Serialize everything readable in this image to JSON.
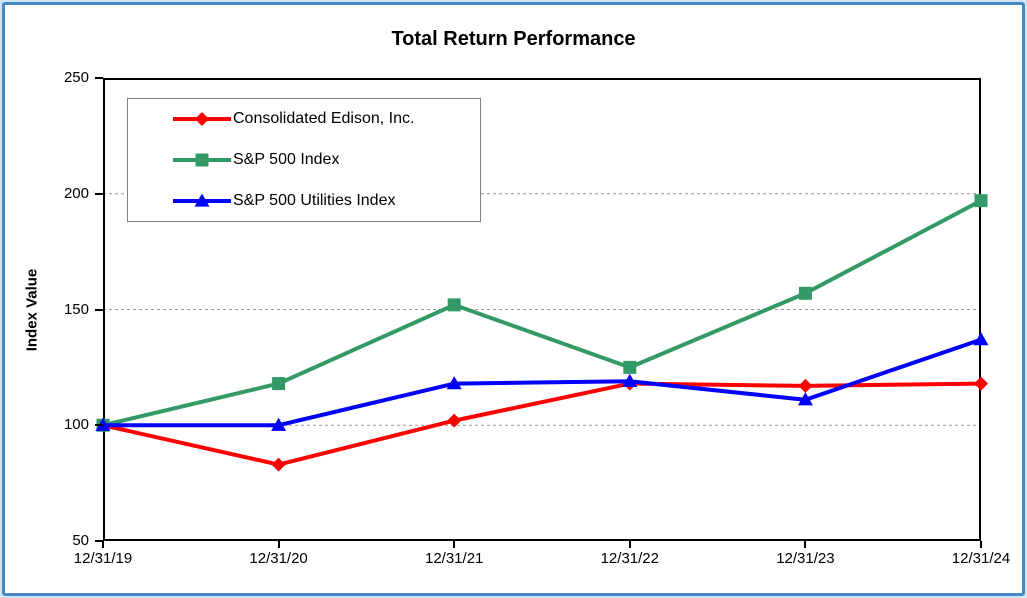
{
  "chart": {
    "frame_border_color": "#4488c4",
    "plot_border_color": "#000000",
    "gridline_style": "dashed-horizontal"
  },
  "chart_data": {
    "type": "line",
    "title": "Total Return Performance",
    "xlabel": "",
    "ylabel": "Index Value",
    "categories": [
      "12/31/19",
      "12/31/20",
      "12/31/21",
      "12/31/22",
      "12/31/23",
      "12/31/24"
    ],
    "y_ticks": [
      250,
      200,
      150,
      100,
      50
    ],
    "ylim": [
      50,
      250
    ],
    "grid": "horizontal dashed at 100, 150, 200",
    "legend_position": "top-left inside plot",
    "series": [
      {
        "name": "Consolidated Edison, Inc.",
        "color": "#ff0000",
        "marker": "diamond",
        "values": [
          100,
          83,
          102,
          118,
          117,
          118
        ]
      },
      {
        "name": "S&P 500 Index",
        "color": "#339966",
        "marker": "square",
        "values": [
          100,
          118,
          152,
          125,
          157,
          197
        ]
      },
      {
        "name": "S&P 500 Utilities Index",
        "color": "#0000ff",
        "marker": "triangle",
        "values": [
          100,
          100,
          118,
          119,
          111,
          137
        ]
      }
    ]
  }
}
